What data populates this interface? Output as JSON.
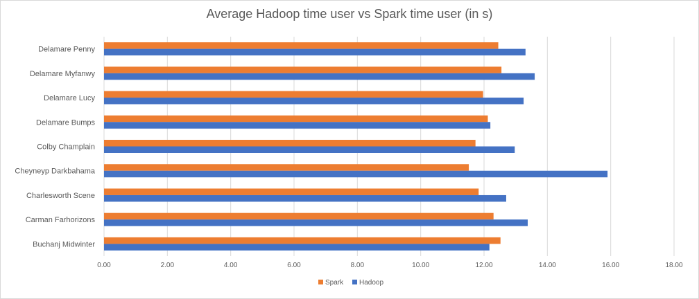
{
  "chart_data": {
    "type": "bar",
    "orientation": "horizontal",
    "title": "Average Hadoop time user vs Spark time user (in s)",
    "categories": [
      "Delamare Penny",
      "Delamare Myfanwy",
      "Delamare Lucy",
      "Delamare Bumps",
      "Colby Champlain",
      "Cheyneyp Darkbahama",
      "Charlesworth Scene",
      "Carman Farhorizons",
      "Buchanj Midwinter"
    ],
    "series": [
      {
        "name": "Spark",
        "color": "#ED7D31",
        "values": [
          12.45,
          12.55,
          11.97,
          12.12,
          11.73,
          11.52,
          11.83,
          12.3,
          12.52
        ]
      },
      {
        "name": "Hadoop",
        "color": "#4472C4",
        "values": [
          13.31,
          13.6,
          13.25,
          12.2,
          12.97,
          15.9,
          12.7,
          13.38,
          12.17
        ]
      }
    ],
    "xlim": [
      0,
      18
    ],
    "xticks": [
      "0.00",
      "2.00",
      "4.00",
      "6.00",
      "8.00",
      "10.00",
      "12.00",
      "14.00",
      "16.00",
      "18.00"
    ],
    "xtick_values": [
      0,
      2,
      4,
      6,
      8,
      10,
      12,
      14,
      16,
      18
    ],
    "grid": true,
    "legend_position": "bottom"
  }
}
